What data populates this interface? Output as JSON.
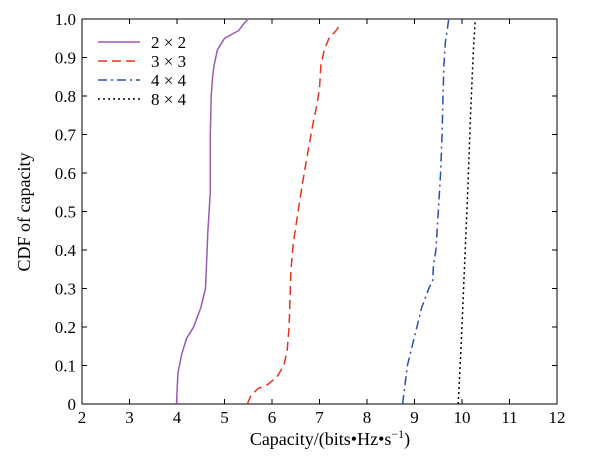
{
  "chart_data": {
    "type": "line",
    "title": "",
    "xlabel": "Capacity/(bits•Hz•s",
    "xlabel_superscript": "−1",
    "xlabel_suffix": ")",
    "ylabel": "CDF of capacity",
    "xlim": [
      2,
      12
    ],
    "ylim": [
      0,
      1.0
    ],
    "x_ticks": [
      "2",
      "3",
      "4",
      "5",
      "6",
      "7",
      "8",
      "9",
      "10",
      "11",
      "12"
    ],
    "y_ticks": [
      "0",
      "0.1",
      "0.2",
      "0.3",
      "0.4",
      "0.5",
      "0.6",
      "0.7",
      "0.8",
      "0.9",
      "1.0"
    ],
    "grid": false,
    "legend_position": "top-left",
    "series": [
      {
        "name": "2 × 2",
        "color": "#9b59b6",
        "style": "solid",
        "x": [
          3.99,
          4.0,
          4.02,
          4.05,
          4.1,
          4.2,
          4.35,
          4.5,
          4.6,
          4.65,
          4.7,
          4.7,
          4.72,
          4.75,
          4.78,
          4.85,
          5.0,
          5.15,
          5.3,
          5.42,
          5.5
        ],
        "y": [
          0.0,
          0.03,
          0.08,
          0.1,
          0.13,
          0.17,
          0.2,
          0.25,
          0.3,
          0.45,
          0.55,
          0.7,
          0.8,
          0.85,
          0.88,
          0.92,
          0.95,
          0.96,
          0.97,
          0.99,
          1.0
        ]
      },
      {
        "name": "3 × 3",
        "color": "#e8321e",
        "style": "dashed",
        "x": [
          5.48,
          5.55,
          5.7,
          5.9,
          6.1,
          6.25,
          6.32,
          6.36,
          6.38,
          6.4,
          6.45,
          6.55,
          6.65,
          6.75,
          6.85,
          6.95,
          7.0,
          7.03,
          7.1,
          7.2,
          7.35,
          7.45
        ],
        "y": [
          0.0,
          0.02,
          0.04,
          0.05,
          0.07,
          0.1,
          0.14,
          0.2,
          0.28,
          0.35,
          0.42,
          0.5,
          0.58,
          0.65,
          0.72,
          0.78,
          0.82,
          0.88,
          0.92,
          0.95,
          0.97,
          0.99
        ]
      },
      {
        "name": "4 × 4",
        "color": "#2a4fb3",
        "style": "dashdot",
        "x": [
          8.75,
          8.8,
          8.85,
          8.95,
          9.05,
          9.15,
          9.3,
          9.38,
          9.4,
          9.45,
          9.5,
          9.55,
          9.58,
          9.6,
          9.62,
          9.65,
          9.7,
          9.72
        ],
        "y": [
          0.0,
          0.05,
          0.1,
          0.15,
          0.2,
          0.25,
          0.3,
          0.32,
          0.36,
          0.4,
          0.5,
          0.6,
          0.7,
          0.8,
          0.88,
          0.94,
          0.98,
          1.0
        ]
      },
      {
        "name": "8 × 4",
        "color": "#000000",
        "style": "dotted",
        "x": [
          9.92,
          9.98,
          10.05,
          10.12,
          10.18,
          10.24,
          10.28
        ],
        "y": [
          0.0,
          0.15,
          0.35,
          0.55,
          0.75,
          0.92,
          1.0
        ]
      }
    ]
  }
}
